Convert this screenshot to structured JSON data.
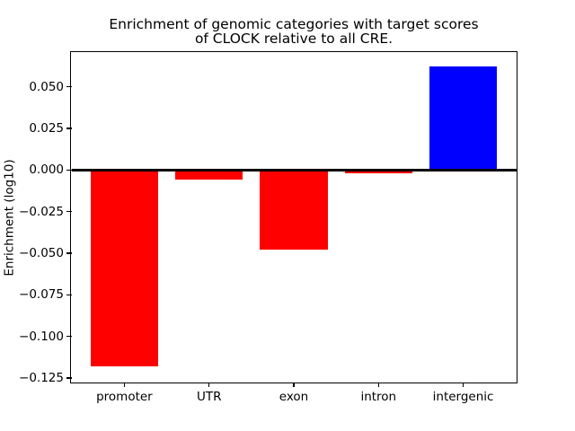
{
  "chart_data": {
    "type": "bar",
    "title_lines": [
      "Enrichment of genomic categories with target scores",
      "of CLOCK relative to all CRE."
    ],
    "title": "Enrichment of genomic categories with target scores of CLOCK relative to all CRE.",
    "xlabel": "",
    "ylabel": "Enrichment (log10)",
    "categories": [
      "promoter",
      "UTR",
      "exon",
      "intron",
      "intergenic"
    ],
    "values": [
      -0.118,
      -0.006,
      -0.048,
      -0.002,
      0.062
    ],
    "bar_colors": [
      "#ff0000",
      "#ff0000",
      "#ff0000",
      "#ff0000",
      "#0000ff"
    ],
    "negative_color": "#ff0000",
    "positive_color": "#0000ff",
    "yticks": [
      0.05,
      0.025,
      0.0,
      -0.025,
      -0.05,
      -0.075,
      -0.1,
      -0.125
    ],
    "ytick_labels": [
      "0.050",
      "0.025",
      "0.000",
      "−0.025",
      "−0.050",
      "−0.075",
      "−0.100",
      "−0.125"
    ],
    "ylim": [
      -0.1274,
      0.0706
    ],
    "xlim": [
      -0.625,
      4.625
    ],
    "bar_width": 0.8,
    "grid": false,
    "zero_line": true,
    "legend_position": "none",
    "axis_color": "#000000",
    "background_color": "#ffffff"
  }
}
